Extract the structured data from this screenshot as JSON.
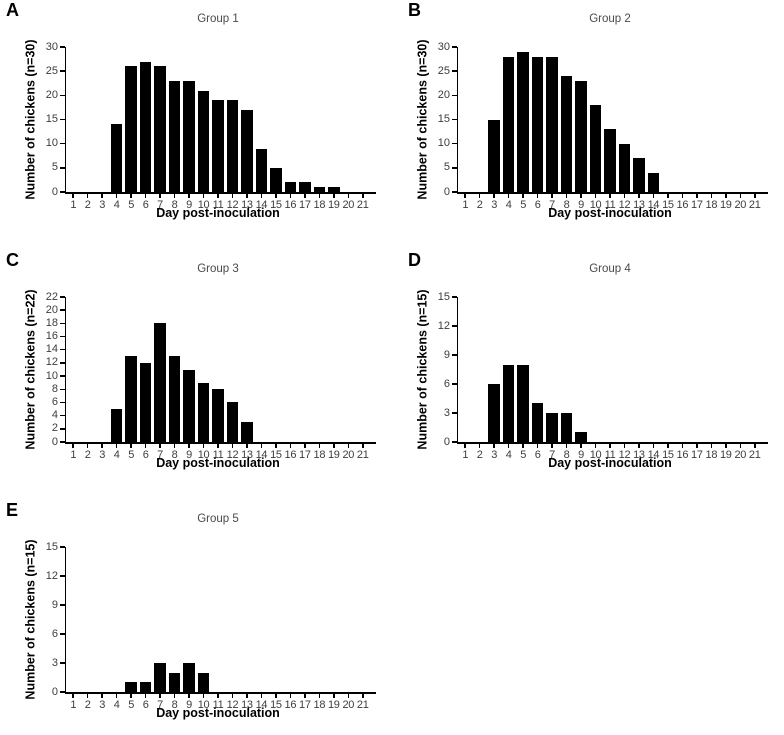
{
  "colors": {
    "bar": "#000000",
    "axis": "#000000",
    "tick_text": "#3d3d3d",
    "title_text": "#4a4a4a",
    "label_text": "#000000"
  },
  "chart_data": [
    {
      "type": "bar",
      "panel": "A",
      "title": "Group 1",
      "xlabel": "Day post-inoculation",
      "ylabel": "Number of chickens (n=30)",
      "x": [
        1,
        2,
        3,
        4,
        5,
        6,
        7,
        8,
        9,
        10,
        11,
        12,
        13,
        14,
        15,
        16,
        17,
        18,
        19,
        20,
        21
      ],
      "values": [
        0,
        0,
        0,
        14,
        26,
        27,
        26,
        23,
        23,
        21,
        19,
        19,
        17,
        9,
        5,
        2,
        2,
        1,
        1,
        0,
        0
      ],
      "ylim": [
        0,
        30
      ],
      "yticks": [
        0,
        5,
        10,
        15,
        20,
        25,
        30
      ],
      "grid": false,
      "legend": false
    },
    {
      "type": "bar",
      "panel": "B",
      "title": "Group 2",
      "xlabel": "Day post-inoculation",
      "ylabel": "Number of chickens (n=30)",
      "x": [
        1,
        2,
        3,
        4,
        5,
        6,
        7,
        8,
        9,
        10,
        11,
        12,
        13,
        14,
        15,
        16,
        17,
        18,
        19,
        20,
        21
      ],
      "values": [
        0,
        0,
        15,
        28,
        29,
        28,
        28,
        24,
        23,
        18,
        13,
        10,
        7,
        4,
        0,
        0,
        0,
        0,
        0,
        0,
        0
      ],
      "ylim": [
        0,
        30
      ],
      "yticks": [
        0,
        5,
        10,
        15,
        20,
        25,
        30
      ],
      "grid": false,
      "legend": false
    },
    {
      "type": "bar",
      "panel": "C",
      "title": "Group 3",
      "xlabel": "Day post-inoculation",
      "ylabel": "Number of chickens (n=22)",
      "x": [
        1,
        2,
        3,
        4,
        5,
        6,
        7,
        8,
        9,
        10,
        11,
        12,
        13,
        14,
        15,
        16,
        17,
        18,
        19,
        20,
        21
      ],
      "values": [
        0,
        0,
        0,
        5,
        13,
        12,
        18,
        13,
        11,
        9,
        8,
        6,
        3,
        0,
        0,
        0,
        0,
        0,
        0,
        0,
        0
      ],
      "ylim": [
        0,
        22
      ],
      "yticks": [
        0,
        2,
        4,
        6,
        8,
        10,
        12,
        14,
        16,
        18,
        20,
        22
      ],
      "grid": false,
      "legend": false
    },
    {
      "type": "bar",
      "panel": "D",
      "title": "Group 4",
      "xlabel": "Day post-inoculation",
      "ylabel": "Number of chickens (n=15)",
      "x": [
        1,
        2,
        3,
        4,
        5,
        6,
        7,
        8,
        9,
        10,
        11,
        12,
        13,
        14,
        15,
        16,
        17,
        18,
        19,
        20,
        21
      ],
      "values": [
        0,
        0,
        6,
        8,
        8,
        4,
        3,
        3,
        1,
        0,
        0,
        0,
        0,
        0,
        0,
        0,
        0,
        0,
        0,
        0,
        0
      ],
      "ylim": [
        0,
        15
      ],
      "yticks": [
        0,
        3,
        6,
        9,
        12,
        15
      ],
      "grid": false,
      "legend": false
    },
    {
      "type": "bar",
      "panel": "E",
      "title": "Group 5",
      "xlabel": "Day post-inoculation",
      "ylabel": "Number of chickens (n=15)",
      "x": [
        1,
        2,
        3,
        4,
        5,
        6,
        7,
        8,
        9,
        10,
        11,
        12,
        13,
        14,
        15,
        16,
        17,
        18,
        19,
        20,
        21
      ],
      "values": [
        0,
        0,
        0,
        0,
        1,
        1,
        3,
        2,
        3,
        2,
        0,
        0,
        0,
        0,
        0,
        0,
        0,
        0,
        0,
        0,
        0
      ],
      "ylim": [
        0,
        15
      ],
      "yticks": [
        0,
        3,
        6,
        9,
        12,
        15
      ],
      "grid": false,
      "legend": false
    }
  ]
}
